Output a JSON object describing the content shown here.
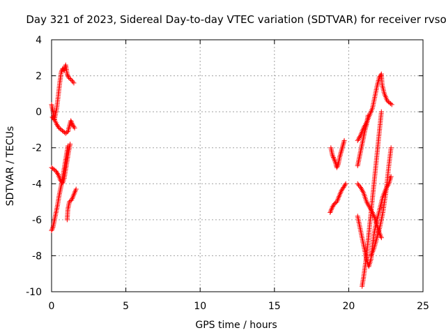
{
  "chart_data": {
    "type": "scatter",
    "title": "Day 321 of 2023, Sidereal Day-to-day VTEC variation (SDTVAR) for receiver rvso",
    "xlabel": "GPS time / hours",
    "ylabel": "SDTVAR / TECUs",
    "xlim": [
      0,
      25
    ],
    "ylim": [
      -10,
      4
    ],
    "xticks": [
      0,
      5,
      10,
      15,
      20,
      25
    ],
    "yticks": [
      -10,
      -8,
      -6,
      -4,
      -2,
      0,
      2,
      4
    ],
    "xtick_labels": [
      "0",
      "5",
      "10",
      "15",
      "20",
      "25"
    ],
    "ytick_labels": [
      "-10",
      "-8",
      "-6",
      "-4",
      "-2",
      "0",
      "2",
      "4"
    ],
    "grid": true,
    "marker": "+",
    "series": [
      {
        "name": "SDTVAR",
        "color": "#ff0000",
        "tracks": [
          [
            [
              0.0,
              0.4
            ],
            [
              0.1,
              0.0
            ],
            [
              0.2,
              -0.4
            ],
            [
              0.35,
              0.2
            ],
            [
              0.45,
              0.9
            ],
            [
              0.55,
              1.6
            ],
            [
              0.65,
              2.2
            ],
            [
              0.75,
              2.4
            ],
            [
              0.85,
              2.3
            ],
            [
              0.95,
              2.6
            ],
            [
              1.05,
              2.1
            ],
            [
              1.15,
              1.9
            ],
            [
              1.3,
              1.8
            ],
            [
              1.5,
              1.6
            ]
          ],
          [
            [
              0.05,
              -0.3
            ],
            [
              0.2,
              -0.45
            ],
            [
              0.35,
              -0.7
            ],
            [
              0.5,
              -0.9
            ],
            [
              0.65,
              -1.0
            ],
            [
              0.8,
              -1.1
            ],
            [
              0.95,
              -1.2
            ],
            [
              1.1,
              -1.1
            ],
            [
              1.2,
              -0.8
            ],
            [
              1.3,
              -0.5
            ],
            [
              1.4,
              -0.7
            ],
            [
              1.55,
              -0.9
            ]
          ],
          [
            [
              0.0,
              -3.1
            ],
            [
              0.15,
              -3.2
            ],
            [
              0.3,
              -3.3
            ],
            [
              0.45,
              -3.5
            ],
            [
              0.6,
              -3.8
            ],
            [
              0.75,
              -3.95
            ],
            [
              0.85,
              -3.7
            ],
            [
              0.95,
              -3.2
            ],
            [
              1.05,
              -2.7
            ],
            [
              1.15,
              -2.2
            ],
            [
              1.25,
              -1.8
            ]
          ],
          [
            [
              0.0,
              -6.6
            ],
            [
              0.1,
              -6.4
            ],
            [
              0.2,
              -6.0
            ],
            [
              0.3,
              -5.6
            ],
            [
              0.4,
              -5.2
            ],
            [
              0.5,
              -4.7
            ],
            [
              0.6,
              -4.3
            ],
            [
              0.7,
              -3.9
            ],
            [
              0.8,
              -3.4
            ],
            [
              0.9,
              -2.9
            ],
            [
              1.0,
              -2.4
            ],
            [
              1.1,
              -1.9
            ]
          ],
          [
            [
              1.05,
              -6.0
            ],
            [
              1.1,
              -5.4
            ],
            [
              1.2,
              -5.0
            ],
            [
              1.35,
              -4.9
            ],
            [
              1.5,
              -4.6
            ],
            [
              1.65,
              -4.3
            ]
          ],
          [
            [
              18.8,
              -2.0
            ],
            [
              18.9,
              -2.4
            ],
            [
              19.0,
              -2.6
            ],
            [
              19.1,
              -2.8
            ],
            [
              19.2,
              -3.1
            ],
            [
              19.3,
              -2.9
            ],
            [
              19.4,
              -2.5
            ],
            [
              19.5,
              -2.2
            ],
            [
              19.6,
              -1.9
            ],
            [
              19.7,
              -1.6
            ]
          ],
          [
            [
              18.75,
              -5.6
            ],
            [
              18.9,
              -5.3
            ],
            [
              19.05,
              -5.1
            ],
            [
              19.2,
              -5.0
            ],
            [
              19.35,
              -4.7
            ],
            [
              19.5,
              -4.4
            ],
            [
              19.65,
              -4.2
            ],
            [
              19.8,
              -4.0
            ]
          ],
          [
            [
              20.6,
              -1.6
            ],
            [
              20.8,
              -1.3
            ],
            [
              21.0,
              -0.9
            ],
            [
              21.2,
              -0.6
            ],
            [
              21.4,
              -0.2
            ],
            [
              21.6,
              0.2
            ],
            [
              21.75,
              0.8
            ],
            [
              21.9,
              1.4
            ],
            [
              22.05,
              1.9
            ],
            [
              22.2,
              2.1
            ],
            [
              22.25,
              1.5
            ],
            [
              22.4,
              1.0
            ],
            [
              22.6,
              0.6
            ],
            [
              22.9,
              0.4
            ]
          ],
          [
            [
              20.6,
              -4.0
            ],
            [
              20.8,
              -4.2
            ],
            [
              21.0,
              -4.5
            ],
            [
              21.2,
              -5.0
            ],
            [
              21.4,
              -5.3
            ],
            [
              21.6,
              -5.6
            ],
            [
              21.75,
              -5.9
            ],
            [
              21.9,
              -6.3
            ],
            [
              22.05,
              -6.7
            ],
            [
              22.2,
              -7.0
            ]
          ],
          [
            [
              20.6,
              -5.8
            ],
            [
              20.75,
              -6.4
            ],
            [
              20.9,
              -7.0
            ],
            [
              21.05,
              -7.6
            ],
            [
              21.2,
              -8.2
            ],
            [
              21.35,
              -8.6
            ],
            [
              21.5,
              -8.2
            ],
            [
              21.6,
              -7.5
            ],
            [
              21.7,
              -6.8
            ],
            [
              21.85,
              -6.2
            ],
            [
              22.0,
              -5.7
            ],
            [
              22.15,
              -5.2
            ],
            [
              22.3,
              -4.7
            ],
            [
              22.5,
              -4.3
            ],
            [
              22.7,
              -4.0
            ],
            [
              22.85,
              -3.6
            ]
          ],
          [
            [
              20.9,
              -9.7
            ],
            [
              21.0,
              -9.2
            ],
            [
              21.1,
              -8.6
            ],
            [
              21.2,
              -8.0
            ],
            [
              21.3,
              -7.2
            ],
            [
              21.4,
              -6.4
            ],
            [
              21.5,
              -5.6
            ],
            [
              21.6,
              -4.8
            ],
            [
              21.7,
              -4.0
            ],
            [
              21.8,
              -3.2
            ],
            [
              21.9,
              -2.4
            ],
            [
              22.0,
              -1.6
            ],
            [
              22.1,
              -0.8
            ],
            [
              22.2,
              0.0
            ]
          ],
          [
            [
              21.5,
              -8.0
            ],
            [
              21.7,
              -7.6
            ],
            [
              21.9,
              -7.0
            ],
            [
              22.1,
              -6.4
            ],
            [
              22.3,
              -5.6
            ],
            [
              22.5,
              -4.5
            ],
            [
              22.7,
              -3.0
            ],
            [
              22.85,
              -2.0
            ]
          ],
          [
            [
              20.6,
              -3.0
            ],
            [
              20.7,
              -2.6
            ],
            [
              20.8,
              -2.2
            ],
            [
              20.9,
              -1.8
            ],
            [
              21.0,
              -1.4
            ],
            [
              21.1,
              -1.0
            ],
            [
              21.2,
              -0.7
            ],
            [
              21.3,
              -0.2
            ]
          ]
        ]
      }
    ]
  }
}
